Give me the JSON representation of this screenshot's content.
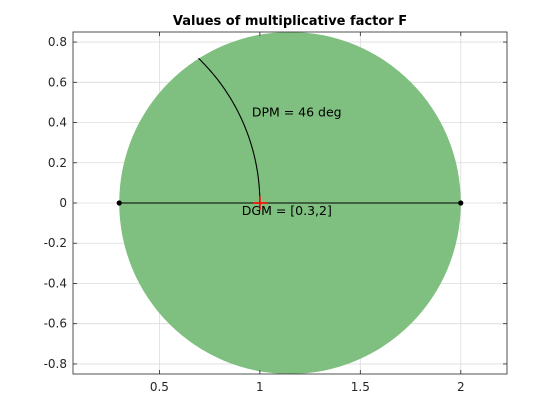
{
  "chart_data": {
    "type": "scatter",
    "title": "Values of multiplicative factor F",
    "xlabel": "",
    "ylabel": "",
    "xlim": [
      0.07,
      2.23
    ],
    "ylim": [
      -0.85,
      0.85
    ],
    "xticks": [
      0.5,
      1,
      1.5,
      2
    ],
    "xtick_labels": [
      "0.5",
      "1",
      "1.5",
      "2"
    ],
    "yticks": [
      -0.8,
      -0.6,
      -0.4,
      -0.2,
      0,
      0.2,
      0.4,
      0.6,
      0.8
    ],
    "ytick_labels": [
      "-0.8",
      "-0.6",
      "-0.4",
      "-0.2",
      "0",
      "0.2",
      "0.4",
      "0.6",
      "0.8"
    ],
    "grid": true,
    "disk": {
      "center": [
        1.15,
        0
      ],
      "radius": 0.85,
      "color": "#7fbf7f"
    },
    "gain_segment": {
      "x": [
        0.3,
        2
      ],
      "y": 0,
      "marker_color": "#000000"
    },
    "phase_arc": {
      "radius": 1,
      "start_deg": 0,
      "end_deg": 46,
      "color": "#000000"
    },
    "nominal_point": {
      "x": 1,
      "y": 0,
      "marker": "+",
      "color": "#ff0000"
    },
    "annotations": [
      {
        "text": "DPM = 46 deg",
        "x": 0.96,
        "y": 0.43
      },
      {
        "text": "DGM = [0.3,2]",
        "x": 0.91,
        "y": -0.06
      }
    ]
  }
}
